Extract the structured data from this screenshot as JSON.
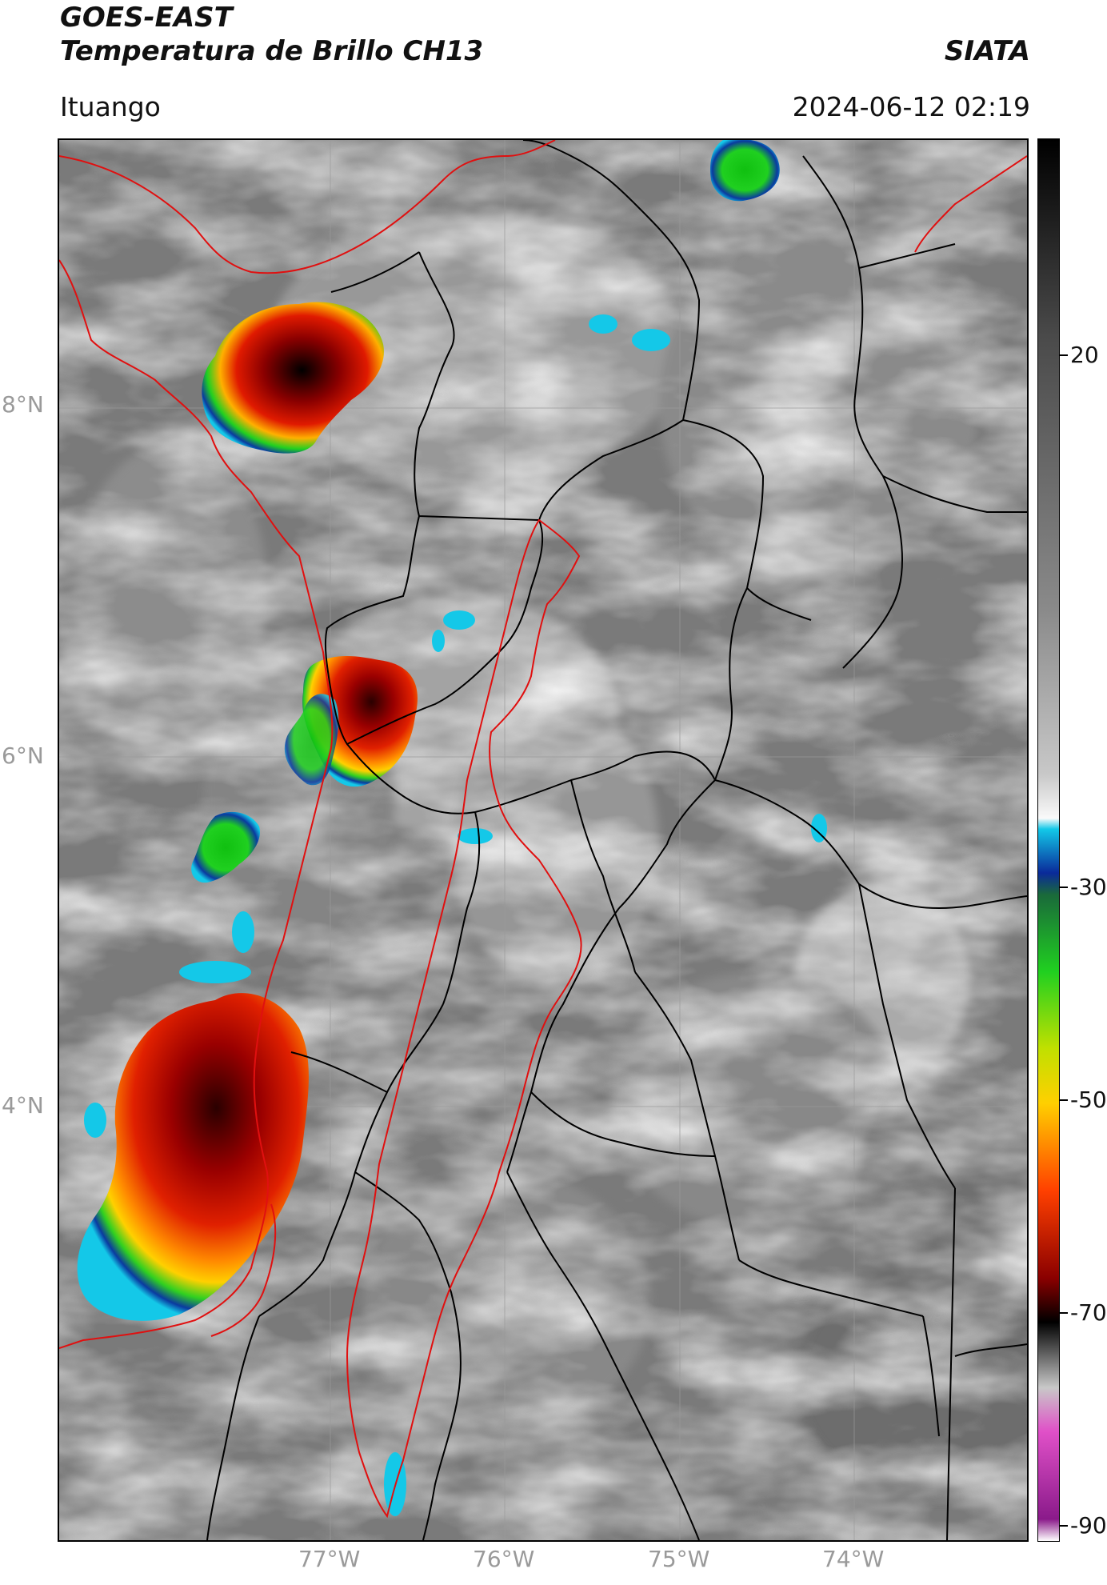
{
  "header": {
    "title_line1": "GOES-EAST",
    "title_line2": "Temperatura de Brillo CH13",
    "organization": "SIATA",
    "site": "Ituango",
    "timestamp": "2024-06-12 02:19"
  },
  "map": {
    "lat_labels": [
      "8°N",
      "6°N",
      "4°N"
    ],
    "lon_labels": [
      "77°W",
      "76°W",
      "75°W",
      "74°W"
    ],
    "boundary_colors": {
      "country": "#e01010",
      "department": "#000000",
      "basin": "#e01010"
    }
  },
  "colorbar": {
    "tick_labels": [
      "20",
      "-30",
      "-50",
      "-70",
      "-90"
    ],
    "stops": [
      {
        "value": 38,
        "color": "#000000"
      },
      {
        "value": 20,
        "color": "#4a4a4a"
      },
      {
        "value": -5,
        "color": "#8a8a8a"
      },
      {
        "value": -20,
        "color": "#c8c8c8"
      },
      {
        "value": -24,
        "color": "#fafafa"
      },
      {
        "value": -25,
        "color": "#12c8e8"
      },
      {
        "value": -29,
        "color": "#0a2a9a"
      },
      {
        "value": -31,
        "color": "#1a6a3a"
      },
      {
        "value": -38,
        "color": "#20d020"
      },
      {
        "value": -45,
        "color": "#c0e000"
      },
      {
        "value": -50,
        "color": "#ffd000"
      },
      {
        "value": -58,
        "color": "#ff4000"
      },
      {
        "value": -66,
        "color": "#8a0000"
      },
      {
        "value": -70,
        "color": "#000000"
      },
      {
        "value": -76,
        "color": "#c8c8c8"
      },
      {
        "value": -80,
        "color": "#e050c8"
      },
      {
        "value": -88,
        "color": "#8a1a8a"
      },
      {
        "value": -90,
        "color": "#ffffff"
      }
    ]
  }
}
